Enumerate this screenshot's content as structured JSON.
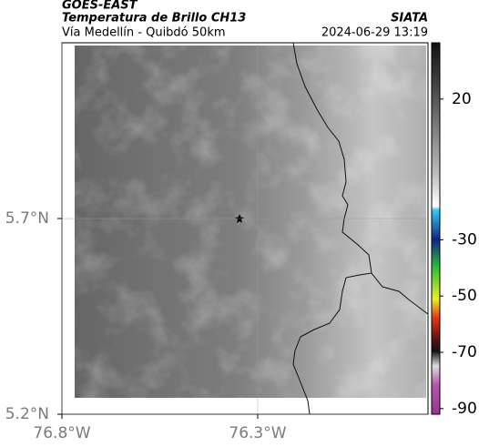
{
  "header": {
    "title": "GOES-EAST",
    "subtitle": "Temperatura de Brillo CH13",
    "route": "Vía Medellín - Quibdó 50km",
    "source": "SIATA",
    "timestamp": "2024-06-29 13:19"
  },
  "map": {
    "xlim": [
      -76.8,
      -75.865
    ],
    "ylim": [
      5.2,
      6.149
    ],
    "xticks": [
      {
        "value": -76.8,
        "label": "76.8°W"
      },
      {
        "value": -76.3,
        "label": "76.3°W"
      }
    ],
    "yticks": [
      {
        "value": 5.2,
        "label": "5.2°N"
      },
      {
        "value": 5.7,
        "label": "5.7°N"
      }
    ],
    "grid": true
  },
  "colorbar": {
    "lim": [
      -92,
      40
    ],
    "ticks": [
      20,
      -30,
      -50,
      -70,
      -90
    ]
  }
}
